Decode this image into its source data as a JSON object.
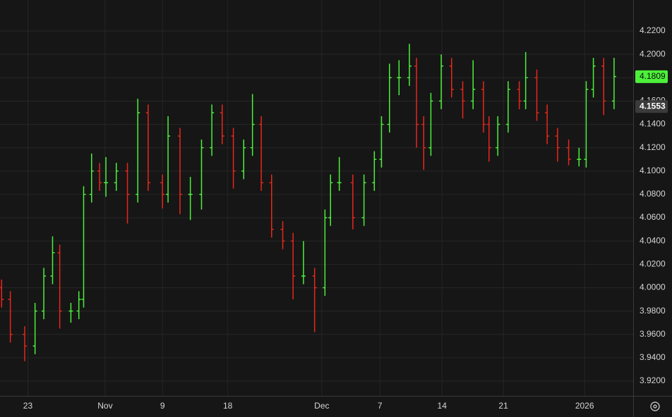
{
  "chart_data": {
    "type": "ohlc",
    "up_color": "#4cf03a",
    "down_color": "#e8261c",
    "grid": true,
    "x": [
      -3.3,
      -2.2,
      -0.4,
      0.9,
      2.0,
      3.1,
      4.0,
      5.4,
      6.4,
      7.0,
      8.0,
      9.0,
      9.8,
      11.1,
      12.5,
      13.8,
      15.1,
      16.9,
      17.6,
      19.1,
      20.4,
      21.8,
      23.1,
      24.4,
      25.8,
      27.1,
      28.2,
      29.3,
      30.6,
      32.0,
      33.3,
      34.6,
      36.0,
      37.3,
      38.0,
      39.1,
      40.8,
      42.2,
      43.5,
      44.4,
      45.4,
      46.6,
      47.9,
      48.8,
      49.7,
      50.6,
      51.9,
      53.2,
      54.6,
      55.9,
      57.2,
      57.9,
      59.0,
      60.3,
      61.7,
      62.5,
      63.9,
      65.2,
      66.5,
      67.9,
      69.2,
      70.1,
      71.0,
      72.3,
      73.6
    ],
    "open": [
      4.0,
      3.99,
      3.96,
      3.95,
      3.98,
      4.01,
      4.03,
      3.98,
      3.98,
      3.99,
      4.08,
      4.1,
      4.09,
      4.09,
      4.1,
      4.08,
      4.15,
      4.09,
      4.08,
      4.13,
      4.08,
      4.08,
      4.12,
      4.15,
      4.13,
      4.1,
      4.12,
      4.14,
      4.09,
      4.05,
      4.04,
      4.01,
      4.01,
      4.0,
      4.06,
      4.09,
      4.09,
      4.06,
      4.09,
      4.11,
      4.14,
      4.18,
      4.18,
      4.19,
      4.14,
      4.12,
      4.16,
      4.19,
      4.17,
      4.16,
      4.17,
      4.14,
      4.12,
      4.14,
      4.17,
      4.16,
      4.18,
      4.15,
      4.13,
      4.12,
      4.11,
      4.11,
      4.17,
      4.19,
      4.16
    ],
    "high": [
      4.007,
      3.997,
      3.967,
      3.987,
      4.017,
      4.044,
      4.037,
      3.987,
      3.997,
      4.087,
      4.115,
      4.107,
      4.112,
      4.107,
      4.107,
      4.162,
      4.157,
      4.097,
      4.147,
      4.137,
      4.095,
      4.127,
      4.157,
      4.157,
      4.137,
      4.127,
      4.166,
      4.147,
      4.097,
      4.057,
      4.047,
      4.04,
      4.017,
      4.067,
      4.097,
      4.112,
      4.097,
      4.097,
      4.117,
      4.147,
      4.192,
      4.195,
      4.209,
      4.197,
      4.147,
      4.167,
      4.2,
      4.197,
      4.177,
      4.195,
      4.177,
      4.147,
      4.147,
      4.177,
      4.177,
      4.202,
      4.187,
      4.157,
      4.137,
      4.127,
      4.12,
      4.177,
      4.197,
      4.197,
      4.197
    ],
    "low": [
      3.983,
      3.953,
      3.937,
      3.943,
      3.973,
      4.003,
      3.965,
      3.97,
      3.973,
      3.983,
      4.073,
      4.083,
      4.078,
      4.083,
      4.055,
      4.073,
      4.083,
      4.068,
      4.073,
      4.063,
      4.058,
      4.067,
      4.113,
      4.123,
      4.085,
      4.093,
      4.113,
      4.083,
      4.043,
      4.033,
      3.99,
      4.003,
      3.962,
      3.993,
      4.053,
      4.083,
      4.05,
      4.053,
      4.083,
      4.103,
      4.133,
      4.165,
      4.173,
      4.12,
      4.101,
      4.113,
      4.153,
      4.163,
      4.145,
      4.153,
      4.133,
      4.108,
      4.113,
      4.133,
      4.153,
      4.153,
      4.143,
      4.123,
      4.108,
      4.105,
      4.104,
      4.103,
      4.163,
      4.148,
      4.153
    ],
    "close": [
      3.99,
      3.96,
      3.95,
      3.98,
      4.01,
      4.03,
      3.98,
      3.98,
      3.99,
      4.08,
      4.1,
      4.09,
      4.09,
      4.1,
      4.08,
      4.15,
      4.09,
      4.08,
      4.13,
      4.08,
      4.08,
      4.12,
      4.15,
      4.13,
      4.1,
      4.12,
      4.14,
      4.09,
      4.05,
      4.04,
      4.01,
      4.01,
      4.0,
      4.06,
      4.09,
      4.09,
      4.06,
      4.09,
      4.11,
      4.14,
      4.18,
      4.18,
      4.19,
      4.14,
      4.12,
      4.16,
      4.19,
      4.17,
      4.16,
      4.17,
      4.14,
      4.12,
      4.14,
      4.17,
      4.16,
      4.18,
      4.15,
      4.13,
      4.12,
      4.11,
      4.11,
      4.17,
      4.19,
      4.16,
      4.181
    ],
    "xlim": [
      -3.5,
      76.0
    ],
    "xticks": [
      {
        "value": 0,
        "label": "23"
      },
      {
        "value": 9.7,
        "label": "Nov"
      },
      {
        "value": 16.9,
        "label": "9"
      },
      {
        "value": 25.1,
        "label": "18"
      },
      {
        "value": 36.9,
        "label": "Dec"
      },
      {
        "value": 44.2,
        "label": "7"
      },
      {
        "value": 52.0,
        "label": "14"
      },
      {
        "value": 59.7,
        "label": "21"
      },
      {
        "value": 69.9,
        "label": "2026"
      }
    ],
    "ylim": [
      3.9073,
      4.2466
    ],
    "yticks": [
      {
        "value": 3.92,
        "label": "3.9200"
      },
      {
        "value": 3.94,
        "label": "3.9400"
      },
      {
        "value": 3.96,
        "label": "3.9600"
      },
      {
        "value": 3.98,
        "label": "3.9800"
      },
      {
        "value": 4.0,
        "label": "4.0000"
      },
      {
        "value": 4.02,
        "label": "4.0200"
      },
      {
        "value": 4.04,
        "label": "4.0400"
      },
      {
        "value": 4.06,
        "label": "4.0600"
      },
      {
        "value": 4.08,
        "label": "4.0800"
      },
      {
        "value": 4.1,
        "label": "4.1000"
      },
      {
        "value": 4.12,
        "label": "4.1200"
      },
      {
        "value": 4.14,
        "label": "4.1400"
      },
      {
        "value": 4.16,
        "label": "4.1600"
      },
      {
        "value": 4.18,
        "label": "4.1800"
      },
      {
        "value": 4.2,
        "label": "4.2000"
      },
      {
        "value": 4.22,
        "label": "4.2200"
      }
    ],
    "last_price": 4.1809,
    "reference_price": 4.1553
  }
}
